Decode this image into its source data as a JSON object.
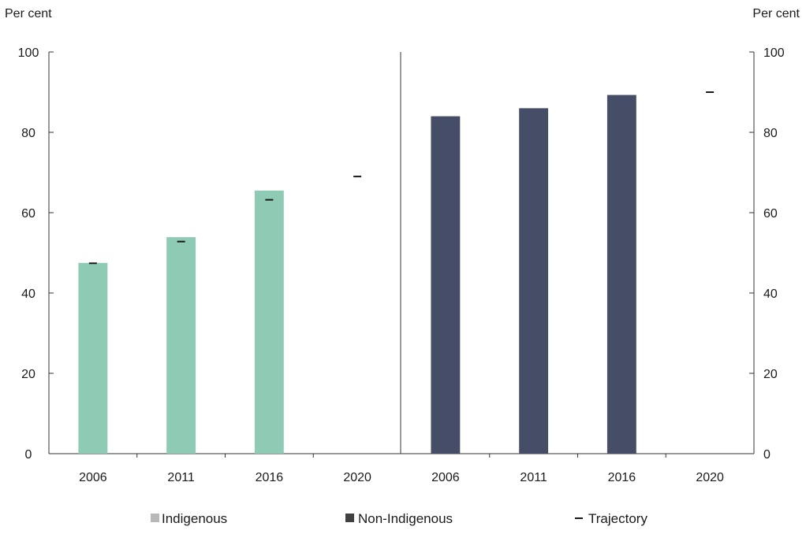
{
  "chart_data": {
    "type": "bar",
    "y_unit_left": "Per cent",
    "y_unit_right": "Per cent",
    "ylim": [
      0,
      100
    ],
    "yticks": [
      0,
      20,
      40,
      60,
      80,
      100
    ],
    "grid": false,
    "legend_placement": "bottom",
    "panels": [
      {
        "series": "Indigenous",
        "categories": [
          "2006",
          "2011",
          "2016",
          "2020"
        ],
        "values": [
          47.5,
          53.9,
          65.5,
          null
        ],
        "trajectory": [
          47.4,
          52.8,
          63.2,
          69.0
        ],
        "color": "#8fcab5"
      },
      {
        "series": "Non-Indigenous",
        "categories": [
          "2006",
          "2011",
          "2016",
          "2020"
        ],
        "values": [
          84.0,
          86.0,
          89.3,
          null
        ],
        "trajectory": [
          null,
          null,
          null,
          90.0
        ],
        "color": "#464d67"
      }
    ],
    "legend": [
      {
        "label": "Indigenous",
        "marker": "square",
        "color": "#b8b8b8"
      },
      {
        "label": "Non-Indigenous",
        "marker": "square",
        "color": "#404040"
      },
      {
        "label": "Trajectory",
        "marker": "dash",
        "color": "#1a1a1a"
      }
    ]
  }
}
